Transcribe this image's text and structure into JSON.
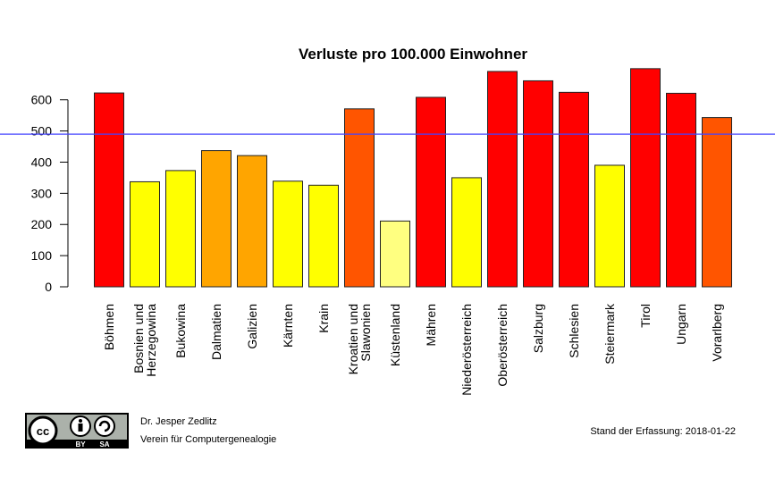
{
  "chart_data": {
    "type": "bar",
    "title": "Verluste pro 100.000 Einwohner",
    "xlabel": "",
    "ylabel": "",
    "ylim": [
      0,
      700
    ],
    "yticks": [
      "0",
      "100",
      "200",
      "300",
      "400",
      "500",
      "600"
    ],
    "grid": false,
    "categories": [
      [
        "Böhmen"
      ],
      [
        "Bosnien und",
        "Herzegowina"
      ],
      [
        "Bukowina"
      ],
      [
        "Dalmatien"
      ],
      [
        "Galizien"
      ],
      [
        "Kärnten"
      ],
      [
        "Krain"
      ],
      [
        "Kroatien und",
        "Slawonien"
      ],
      [
        "Küstenland"
      ],
      [
        "Mähren"
      ],
      [
        "Niederösterreich"
      ],
      [
        "Oberösterreich"
      ],
      [
        "Salzburg"
      ],
      [
        "Schlesien"
      ],
      [
        "Steiermark"
      ],
      [
        "Tirol"
      ],
      [
        "Ungarn"
      ],
      [
        "Vorarlberg"
      ]
    ],
    "values": [
      622,
      337,
      373,
      437,
      421,
      339,
      326,
      571,
      211,
      608,
      350,
      691,
      661,
      624,
      390,
      700,
      621,
      543
    ],
    "colors": [
      "#ff0000",
      "#ffff00",
      "#ffff00",
      "#ffa500",
      "#ffa500",
      "#ffff00",
      "#ffff00",
      "#ff5500",
      "#ffff80",
      "#ff0000",
      "#ffff00",
      "#ff0000",
      "#ff0000",
      "#ff0000",
      "#ffff00",
      "#ff0000",
      "#ff0000",
      "#ff5500"
    ],
    "reference_line": {
      "value": 490,
      "color": "#4444ff"
    }
  },
  "footer": {
    "license_logo": "CC BY SA",
    "author": "Dr. Jesper Zedlitz",
    "organization": "Verein für Computergenealogie",
    "date": "Stand der Erfassung: 2018-01-22"
  }
}
